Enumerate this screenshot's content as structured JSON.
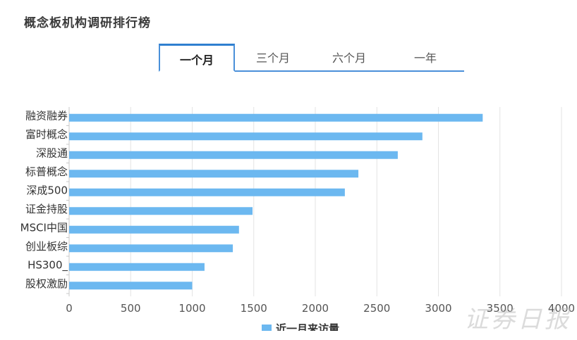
{
  "header": {
    "title": "概念板机构调研排行榜"
  },
  "tabs": [
    {
      "label": "一个月",
      "active": true
    },
    {
      "label": "三个月",
      "active": false
    },
    {
      "label": "六个月",
      "active": false
    },
    {
      "label": "一年",
      "active": false
    }
  ],
  "watermark": "证券日报",
  "colors": {
    "bar": "#6cb8f0",
    "accent": "#4a90d9",
    "grid": "#e3e3e3"
  },
  "chart_data": {
    "type": "bar",
    "orientation": "horizontal",
    "categories": [
      "融资融券",
      "富时概念",
      "深股通",
      "标普概念",
      "深成500",
      "证金持股",
      "MSCI中国",
      "创业板综",
      "HS300_",
      "股权激励"
    ],
    "series": [
      {
        "name": "近一月来访量",
        "values": [
          3360,
          2870,
          2670,
          2350,
          2240,
          1490,
          1380,
          1330,
          1100,
          1000
        ]
      }
    ],
    "xlim": [
      0,
      4000
    ],
    "xticks": [
      0,
      500,
      1000,
      1500,
      2000,
      2500,
      3000,
      3500,
      4000
    ],
    "grid": true,
    "legend": "bottom"
  }
}
